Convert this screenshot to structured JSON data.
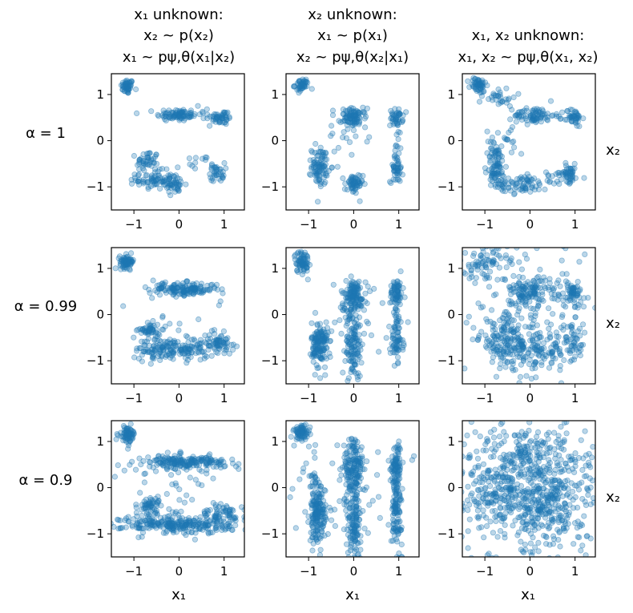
{
  "colors": {
    "point_fill": "#1f77b4",
    "point_fill_opacity": 0.3,
    "point_stroke": "#1f77b4",
    "point_stroke_opacity": 0.45
  },
  "chart_data": {
    "type": "scatter-grid",
    "column_titles": [
      {
        "line1": "unknown:",
        "var1": "x",
        "sub1": "1",
        "line2": "~ p(x",
        "line3": "~ p"
      },
      {
        "line1": "unknown:",
        "var1": "x",
        "sub1": "2"
      },
      {
        "line1": "unknown:"
      }
    ],
    "column_title_text": [
      [
        "x₁ unknown:",
        "x₂ ~ p(x₂)",
        "x₁ ~ pψ,θ(x₁|x₂)"
      ],
      [
        "x₂ unknown:",
        "x₁ ~ p(x₁)",
        "x₂ ~ pψ,θ(x₂|x₁)"
      ],
      [
        "x₁, x₂ unknown:",
        "x₁, x₂ ~ pψ,θ(x₁, x₂)"
      ]
    ],
    "row_labels": [
      "α = 1",
      "α = 0.99",
      "α = 0.9"
    ],
    "xlabel": "x₁",
    "ylabel": "x₂",
    "xlim": [
      -1.5,
      1.45
    ],
    "ylim": [
      -1.5,
      1.45
    ],
    "xticks": [
      -1,
      0,
      1
    ],
    "yticks": [
      -1,
      0,
      1
    ],
    "xtick_labels": [
      "−1",
      "0",
      "1"
    ],
    "ytick_labels": [
      "−1",
      "0",
      "1"
    ],
    "legend": "none",
    "panels": [
      {
        "row": 0,
        "col": 0,
        "n_points": 500,
        "description": "clusters near (-1.15,1.15), (0,0.55), (1,0.5), (-0.75,-0.5), (-0.6,-0.85), (0,-0.95), (0.85,-0.7)"
      },
      {
        "row": 0,
        "col": 1,
        "n_points": 500,
        "description": "clusters near (-1.15,1.2), (0,0.5), (0.95,0.5), (-0.75,-0.6), (0,-0.95), (0.95,-0.65)"
      },
      {
        "row": 0,
        "col": 2,
        "n_points": 500,
        "description": "clusters near (-1.15,1.2), (0,0.55), (1,0.5), (-0.75,-0.6), (-0.1,-0.95), (0.9,-0.7) with bridges"
      },
      {
        "row": 1,
        "col": 0,
        "n_points": 700,
        "description": "wider clusters, horizontal bands at x2=0.5 and x2=-0.7"
      },
      {
        "row": 1,
        "col": 1,
        "n_points": 700,
        "description": "vertical bands at x1=-0.75, 0, 0.95"
      },
      {
        "row": 1,
        "col": 2,
        "n_points": 700,
        "description": "blurred clusters with diffuse background"
      },
      {
        "row": 2,
        "col": 0,
        "n_points": 800,
        "description": "horizontal bands at x2≈0.55 and x2≈-0.7, cluster at (-1.15,1.15)"
      },
      {
        "row": 2,
        "col": 1,
        "n_points": 800,
        "description": "vertical columns at x1≈-0.8, 0, 0.95, cluster at (-1.15,1.2)"
      },
      {
        "row": 2,
        "col": 2,
        "n_points": 900,
        "description": "nearly uniform cloud over the square"
      }
    ]
  }
}
